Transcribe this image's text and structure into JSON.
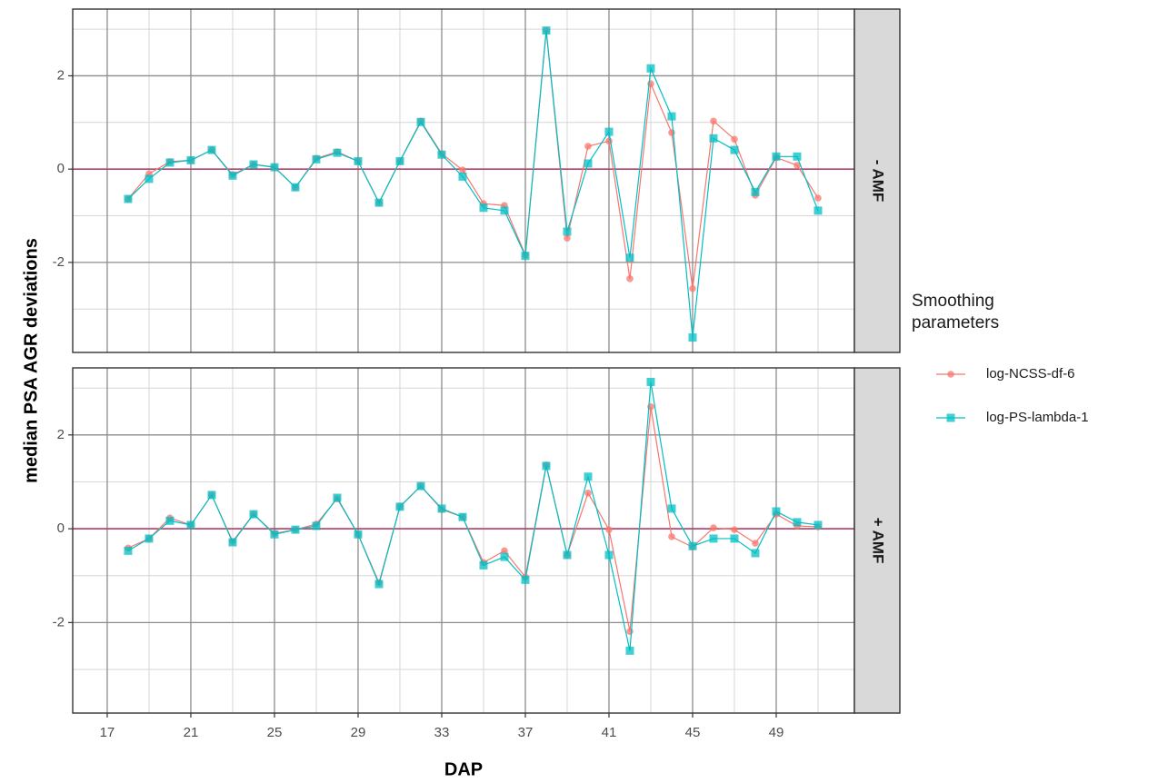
{
  "chart_data": {
    "type": "line",
    "x_label": "DAP",
    "y_label": "median PSA AGR deviations",
    "legend_title": "Smoothing parameters",
    "x": [
      18,
      19,
      20,
      21,
      22,
      23,
      24,
      25,
      26,
      27,
      28,
      29,
      30,
      31,
      32,
      33,
      34,
      35,
      36,
      37,
      38,
      39,
      40,
      41,
      42,
      43,
      44,
      45,
      46,
      47,
      48,
      49,
      50,
      51
    ],
    "xlim": [
      15.35,
      52.74
    ],
    "xticks": [
      17,
      21,
      25,
      29,
      33,
      37,
      41,
      45,
      49
    ],
    "x_minor_ticks": [
      19,
      23,
      27,
      31,
      35,
      39,
      43,
      47,
      51
    ],
    "ylim": [
      -3.93,
      3.43
    ],
    "yticks": [
      -2,
      0,
      2
    ],
    "y_minor_ticks": [
      -3,
      -1,
      1,
      3
    ],
    "reference_line": 0,
    "reference_color": "#b5406a",
    "grid": true,
    "series": [
      {
        "name": "log-NCSS-df-6",
        "color": "#F8766D",
        "marker": "circle"
      },
      {
        "name": "log-PS-lambda-1",
        "color": "#00BFC4",
        "marker": "square"
      }
    ],
    "facets": [
      {
        "label": "- AMF",
        "values": [
          [
            -0.64,
            -0.1,
            0.16,
            0.19,
            0.41,
            -0.12,
            0.1,
            0.04,
            -0.39,
            0.23,
            0.37,
            0.17,
            -0.72,
            0.17,
            1.03,
            0.33,
            -0.02,
            -0.74,
            -0.78,
            -1.84,
            2.97,
            -1.48,
            0.49,
            0.6,
            -2.35,
            1.83,
            0.78,
            -2.56,
            1.03,
            0.64,
            -0.56,
            0.25,
            0.08,
            -0.62
          ],
          [
            -0.64,
            -0.21,
            0.14,
            0.19,
            0.41,
            -0.14,
            0.1,
            0.04,
            -0.39,
            0.21,
            0.35,
            0.17,
            -0.72,
            0.17,
            1.01,
            0.31,
            -0.16,
            -0.83,
            -0.89,
            -1.86,
            2.97,
            -1.34,
            0.12,
            0.8,
            -1.9,
            2.16,
            1.13,
            -3.61,
            0.66,
            0.41,
            -0.49,
            0.27,
            0.27,
            -0.89
          ]
        ]
      },
      {
        "label": "+ AMF",
        "values": [
          [
            -0.41,
            -0.21,
            0.23,
            0.08,
            0.72,
            -0.27,
            0.31,
            -0.1,
            -0.02,
            0.1,
            0.64,
            -0.12,
            -1.15,
            0.47,
            0.91,
            0.41,
            0.25,
            -0.72,
            -0.47,
            -1.03,
            1.36,
            -0.56,
            0.76,
            -0.02,
            -2.19,
            2.6,
            -0.17,
            -0.39,
            0.02,
            -0.02,
            -0.31,
            0.31,
            0.06,
            0.04
          ],
          [
            -0.47,
            -0.21,
            0.17,
            0.08,
            0.72,
            -0.29,
            0.31,
            -0.12,
            -0.02,
            0.06,
            0.66,
            -0.12,
            -1.18,
            0.47,
            0.91,
            0.43,
            0.25,
            -0.78,
            -0.6,
            -1.09,
            1.34,
            -0.56,
            1.11,
            -0.56,
            -2.6,
            3.13,
            0.43,
            -0.37,
            -0.21,
            -0.21,
            -0.52,
            0.37,
            0.14,
            0.08
          ]
        ]
      }
    ]
  }
}
